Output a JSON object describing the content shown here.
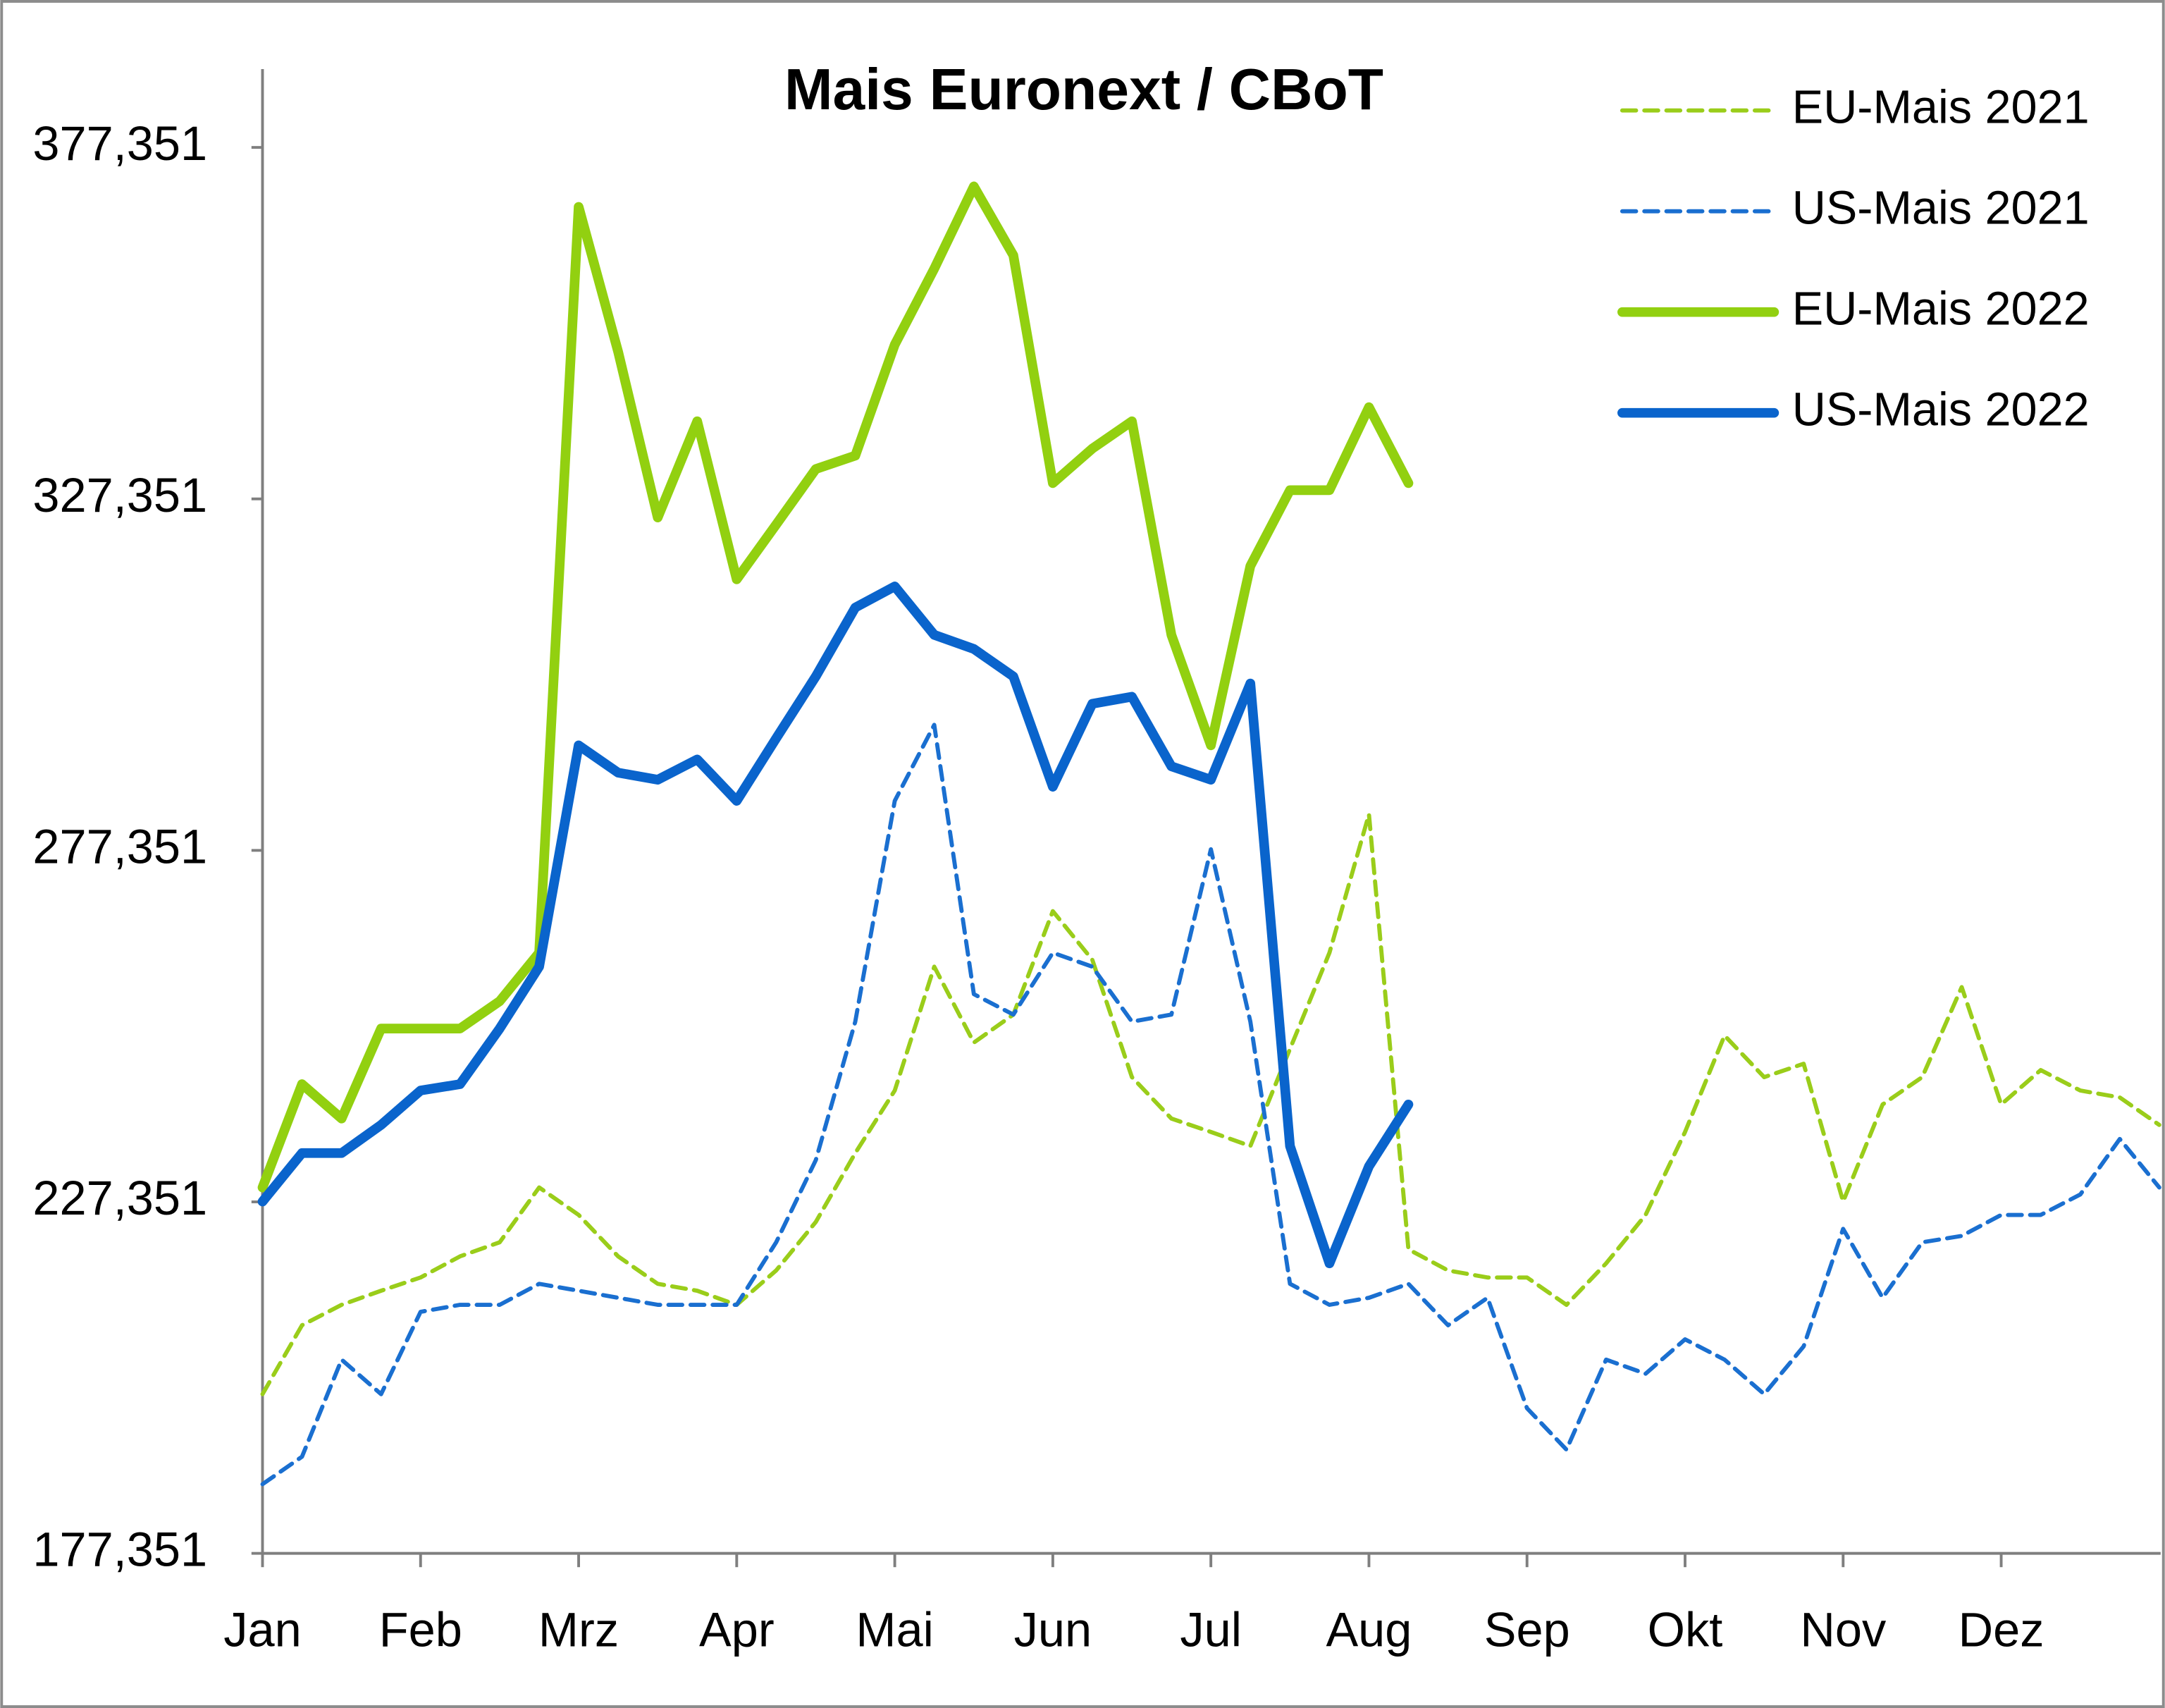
{
  "chart_data": {
    "type": "line",
    "title": "Mais Euronext / CBoT",
    "categories": [
      "Jan",
      null,
      null,
      null,
      "Feb",
      null,
      null,
      null,
      "Mrz",
      null,
      null,
      null,
      "Apr",
      null,
      null,
      null,
      "Mai",
      null,
      null,
      null,
      "Jun",
      null,
      null,
      null,
      "Jul",
      null,
      null,
      null,
      "Aug",
      null,
      null,
      null,
      "Sep",
      null,
      null,
      null,
      "Okt",
      null,
      null,
      null,
      "Nov",
      null,
      null,
      null,
      "Dez",
      null,
      null,
      null,
      null
    ],
    "ylim": [
      177.351,
      388.5
    ],
    "yticks": [
      {
        "value": 177.351,
        "label": "177,351"
      },
      {
        "value": 227.351,
        "label": "227,351"
      },
      {
        "value": 277.351,
        "label": "277,351"
      },
      {
        "value": 327.351,
        "label": "327,351"
      },
      {
        "value": 377.351,
        "label": "377,351"
      }
    ],
    "grid": false,
    "legend": "top-right",
    "series": [
      {
        "name": "EU-Mais 2021",
        "color": "#9acd1a",
        "style": "dashed",
        "values": [
          200.0,
          209.8,
          212.7,
          214.7,
          216.6,
          219.6,
          221.6,
          229.4,
          225.5,
          219.6,
          215.7,
          214.7,
          212.7,
          217.6,
          224.5,
          234.3,
          243.2,
          260.8,
          250.0,
          254.0,
          268.7,
          261.8,
          245.1,
          239.2,
          237.3,
          235.3,
          249.1,
          262.8,
          282.5,
          220.6,
          217.6,
          216.6,
          216.6,
          212.7,
          218.6,
          225.5,
          237.3,
          251.0,
          245.1,
          247.0,
          227.4,
          241.2,
          245.1,
          257.9,
          241.2,
          246.1,
          243.2,
          242.2,
          238.3
        ]
      },
      {
        "name": "US-Mais 2021",
        "color": "#1a6fd0",
        "style": "dashed",
        "values": [
          187.2,
          191.1,
          204.9,
          200.0,
          211.7,
          212.7,
          212.7,
          215.7,
          214.7,
          213.7,
          212.7,
          212.7,
          212.7,
          221.6,
          233.3,
          253.0,
          284.4,
          295.2,
          256.9,
          254.0,
          262.8,
          260.8,
          253.0,
          254.0,
          277.5,
          253.0,
          215.7,
          212.7,
          213.7,
          215.7,
          209.8,
          213.7,
          198.0,
          192.1,
          204.9,
          202.9,
          207.8,
          204.9,
          200.0,
          206.8,
          223.5,
          213.7,
          221.6,
          222.5,
          225.5,
          225.5,
          228.4,
          236.3,
          229.4
        ]
      },
      {
        "name": "EU-Mais 2022",
        "color": "#92d010",
        "style": "solid",
        "values": [
          229.4,
          244.1,
          239.2,
          252.0,
          252.0,
          252.0,
          255.9,
          262.8,
          368.9,
          348.3,
          324.7,
          338.4,
          315.9,
          323.7,
          331.6,
          333.5,
          349.3,
          360.1,
          371.8,
          362.0,
          329.6,
          334.5,
          338.4,
          308.0,
          292.3,
          317.8,
          328.6,
          328.6,
          340.4,
          329.6,
          null,
          null,
          null,
          null,
          null,
          null,
          null,
          null,
          null,
          null,
          null,
          null,
          null,
          null,
          null,
          null,
          null,
          null,
          null
        ]
      },
      {
        "name": "US-Mais 2022",
        "color": "#0a64cc",
        "style": "solid",
        "values": [
          227.4,
          234.3,
          234.3,
          238.3,
          243.2,
          244.1,
          252.0,
          260.8,
          292.3,
          288.4,
          287.4,
          290.3,
          284.4,
          293.3,
          302.1,
          311.9,
          314.9,
          308.0,
          306.0,
          302.1,
          286.4,
          298.2,
          299.2,
          289.3,
          287.4,
          301.1,
          235.3,
          218.6,
          232.4,
          241.2,
          null,
          null,
          null,
          null,
          null,
          null,
          null,
          null,
          null,
          null,
          null,
          null,
          null,
          null,
          null,
          null,
          null,
          null,
          null
        ]
      }
    ]
  }
}
